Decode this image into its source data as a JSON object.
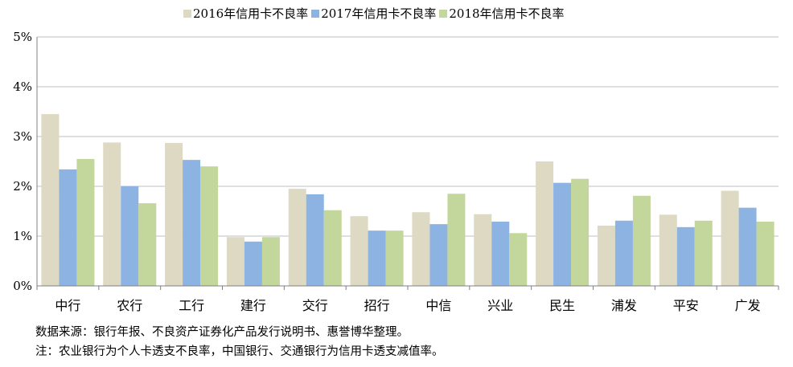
{
  "chart_data": {
    "type": "bar",
    "categories": [
      "中行",
      "农行",
      "工行",
      "建行",
      "交行",
      "招行",
      "中信",
      "兴业",
      "民生",
      "浦发",
      "平安",
      "广发"
    ],
    "series": [
      {
        "name": "2016年信用卡不良率",
        "color": "#ddd9c3",
        "values": [
          3.45,
          2.88,
          2.87,
          0.98,
          1.95,
          1.4,
          1.48,
          1.44,
          2.5,
          1.21,
          1.43,
          1.91
        ]
      },
      {
        "name": "2017年信用卡不良率",
        "color": "#8db3e2",
        "values": [
          2.34,
          2.0,
          2.53,
          0.89,
          1.84,
          1.11,
          1.24,
          1.29,
          2.07,
          1.31,
          1.18,
          1.57
        ]
      },
      {
        "name": "2018年信用卡不良率",
        "color": "#c3d69b",
        "values": [
          2.55,
          1.66,
          2.4,
          0.98,
          1.52,
          1.11,
          1.85,
          1.06,
          2.15,
          1.81,
          1.31,
          1.29
        ]
      }
    ],
    "ylim": [
      0,
      5
    ],
    "yticks": [
      "0%",
      "1%",
      "2%",
      "3%",
      "4%",
      "5%"
    ],
    "grid": true,
    "legend_position": "top-center"
  },
  "notes": {
    "source": "数据来源：银行年报、不良资产证券化产品发行说明书、惠誉博华整理。",
    "remark": "注：农业银行为个人卡透支不良率，中国银行、交通银行为信用卡透支减值率。"
  }
}
